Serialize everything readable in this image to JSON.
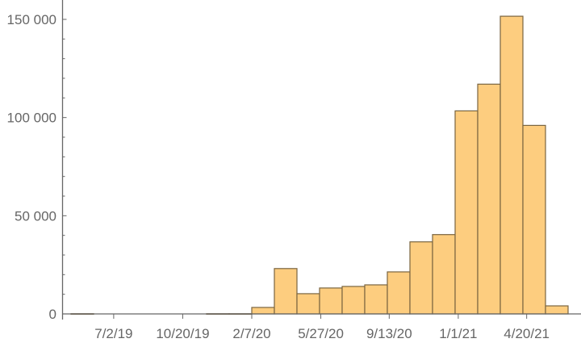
{
  "chart_data": {
    "type": "bar",
    "subtype": "histogram",
    "title": "",
    "xlabel": "",
    "ylabel": "",
    "bin_width_days": 36,
    "bins_start": "2019-04-25",
    "values": [
      100,
      0,
      0,
      0,
      0,
      0,
      100,
      100,
      3300,
      23100,
      10300,
      13200,
      14000,
      14800,
      21400,
      36700,
      40400,
      103400,
      117000,
      151600,
      96000,
      4100
    ],
    "ylim": [
      0,
      150000
    ],
    "y_ticks": [
      {
        "value": 0,
        "label": "0"
      },
      {
        "value": 50000,
        "label": "50 000"
      },
      {
        "value": 100000,
        "label": "100 000"
      },
      {
        "value": 150000,
        "label": "150 000"
      }
    ],
    "y_minor_step": 10000,
    "x_ticks": [
      {
        "date": "2019-07-02",
        "label": "7/2/19"
      },
      {
        "date": "2019-10-20",
        "label": "10/20/19"
      },
      {
        "date": "2020-02-07",
        "label": "2/7/20"
      },
      {
        "date": "2020-05-27",
        "label": "5/27/20"
      },
      {
        "date": "2020-09-13",
        "label": "9/13/20"
      },
      {
        "date": "2021-01-01",
        "label": "1/1/21"
      },
      {
        "date": "2021-04-20",
        "label": "4/20/21"
      }
    ],
    "grid": false,
    "colors": {
      "bar_fill": "#FDCD7F",
      "bar_stroke": "#7A6540",
      "axis": "#666666"
    }
  }
}
